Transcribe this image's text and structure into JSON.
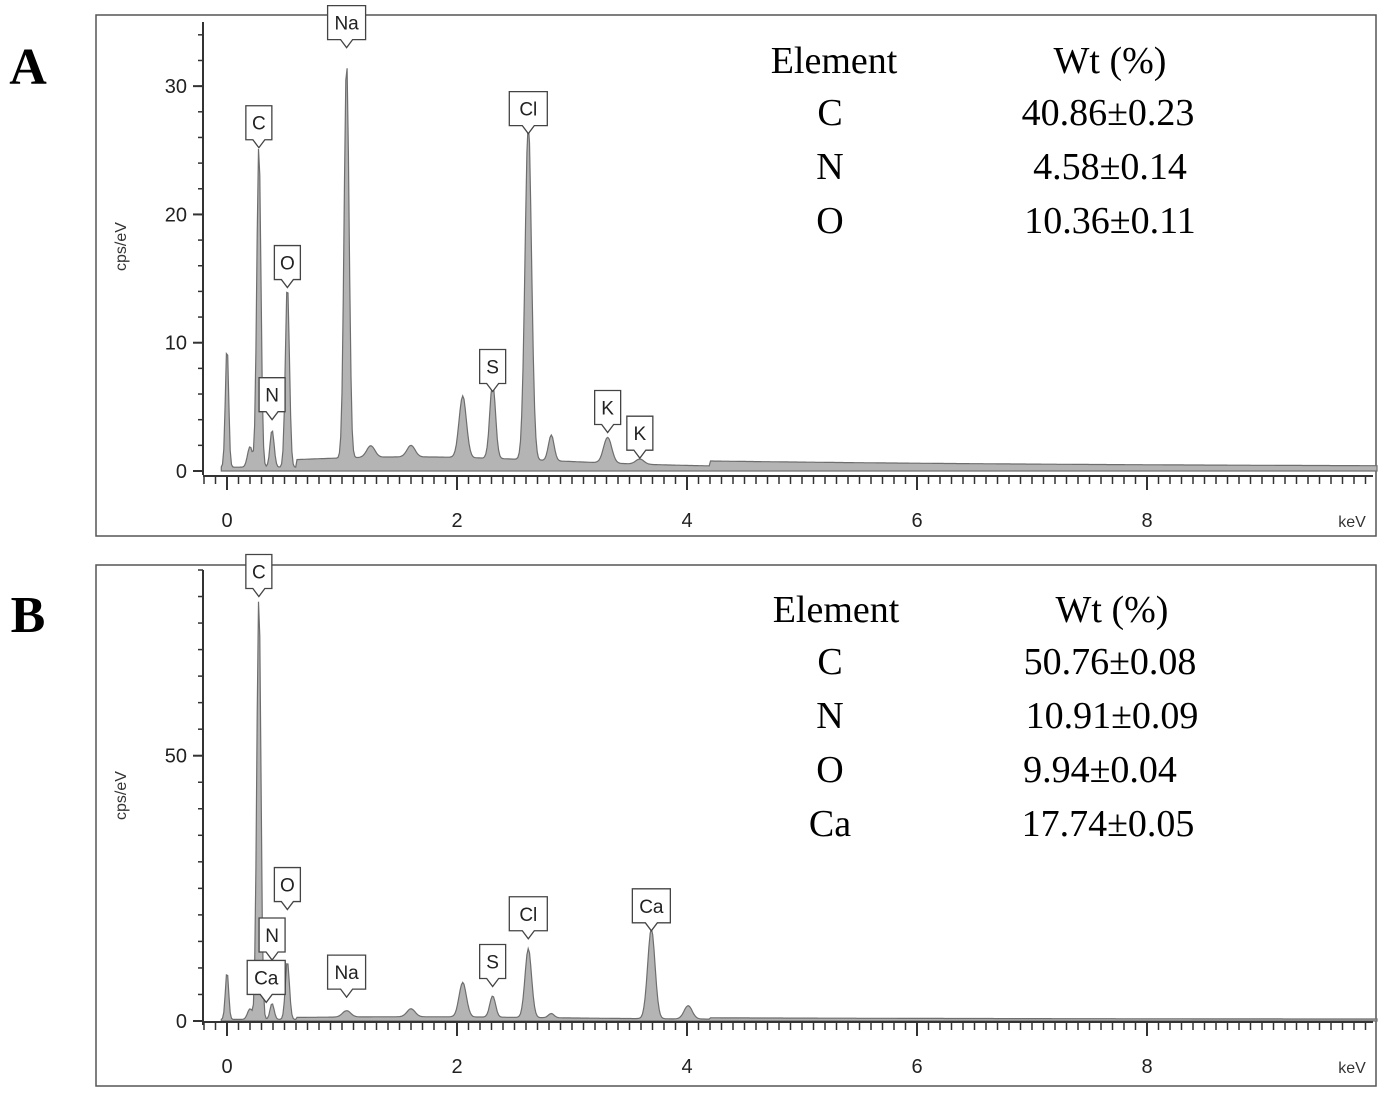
{
  "panels": [
    {
      "letter": "A",
      "table": {
        "header_element": "Element",
        "header_wt": "Wt (%)",
        "rows": [
          {
            "element": "C",
            "wt": "40.86±0.23"
          },
          {
            "element": "N",
            "wt": "4.58±0.14"
          },
          {
            "element": "O",
            "wt": "10.36±0.11"
          }
        ]
      }
    },
    {
      "letter": "B",
      "table": {
        "header_element": "Element",
        "header_wt": "Wt (%)",
        "rows": [
          {
            "element": "C",
            "wt": "50.76±0.08"
          },
          {
            "element": "N",
            "wt": "10.91±0.09"
          },
          {
            "element": "O",
            "wt": "9.94±0.04"
          },
          {
            "element": "Ca",
            "wt": "17.74±0.05"
          }
        ]
      }
    }
  ],
  "chart_data": [
    {
      "type": "area",
      "panel": "A",
      "xlabel": "keV",
      "ylabel": "cps/eV",
      "xlim": [
        -0.2,
        10.0
      ],
      "ylim": [
        0,
        35
      ],
      "xticks": [
        0,
        2,
        4,
        6,
        8
      ],
      "yticks": [
        0,
        10,
        20,
        30
      ],
      "baseline": 0.3,
      "tail_level": 0.8,
      "peaks": [
        {
          "x": 0.0,
          "y": 9.5,
          "w": 0.02
        },
        {
          "x": 0.2,
          "y": 1.6,
          "w": 0.03
        },
        {
          "x": 0.277,
          "y": 25.2,
          "w": 0.025
        },
        {
          "x": 0.392,
          "y": 2.9,
          "w": 0.025
        },
        {
          "x": 0.525,
          "y": 14.3,
          "w": 0.025
        },
        {
          "x": 1.04,
          "y": 31.0,
          "w": 0.03
        },
        {
          "x": 1.25,
          "y": 0.9,
          "w": 0.05
        },
        {
          "x": 1.6,
          "y": 0.9,
          "w": 0.05
        },
        {
          "x": 2.05,
          "y": 4.8,
          "w": 0.045
        },
        {
          "x": 2.31,
          "y": 5.9,
          "w": 0.035
        },
        {
          "x": 2.62,
          "y": 26.3,
          "w": 0.04
        },
        {
          "x": 2.82,
          "y": 2.0,
          "w": 0.035
        },
        {
          "x": 3.31,
          "y": 2.0,
          "w": 0.05
        },
        {
          "x": 3.59,
          "y": 0.4,
          "w": 0.05
        }
      ],
      "peak_labels": [
        {
          "label": "C",
          "x": 0.277,
          "y": 25.2
        },
        {
          "label": "N",
          "x": 0.392,
          "y": 4.0
        },
        {
          "label": "O",
          "x": 0.525,
          "y": 14.3
        },
        {
          "label": "Na",
          "x": 1.04,
          "y": 33.0
        },
        {
          "label": "Cl",
          "x": 2.62,
          "y": 26.3
        },
        {
          "label": "S",
          "x": 2.31,
          "y": 6.2
        },
        {
          "label": "K",
          "x": 3.31,
          "y": 3.0
        },
        {
          "label": "K",
          "x": 3.59,
          "y": 1.0
        }
      ]
    },
    {
      "type": "area",
      "panel": "B",
      "xlabel": "keV",
      "ylabel": "cps/eV",
      "xlim": [
        -0.2,
        10.0
      ],
      "ylim": [
        0,
        85
      ],
      "xticks": [
        0,
        2,
        4,
        6,
        8
      ],
      "yticks": [
        0,
        50
      ],
      "baseline": 0.3,
      "tail_level": 0.5,
      "peaks": [
        {
          "x": 0.0,
          "y": 9.0,
          "w": 0.02
        },
        {
          "x": 0.2,
          "y": 2.0,
          "w": 0.03
        },
        {
          "x": 0.277,
          "y": 80.0,
          "w": 0.025
        },
        {
          "x": 0.392,
          "y": 3.0,
          "w": 0.025
        },
        {
          "x": 0.525,
          "y": 11.0,
          "w": 0.025
        },
        {
          "x": 1.04,
          "y": 1.2,
          "w": 0.05
        },
        {
          "x": 1.6,
          "y": 1.5,
          "w": 0.05
        },
        {
          "x": 2.05,
          "y": 6.5,
          "w": 0.045
        },
        {
          "x": 2.31,
          "y": 4.0,
          "w": 0.035
        },
        {
          "x": 2.62,
          "y": 13.0,
          "w": 0.04
        },
        {
          "x": 2.82,
          "y": 0.8,
          "w": 0.035
        },
        {
          "x": 3.69,
          "y": 17.0,
          "w": 0.045
        },
        {
          "x": 4.01,
          "y": 2.5,
          "w": 0.05
        }
      ],
      "peak_labels": [
        {
          "label": "C",
          "x": 0.277,
          "y": 80.0
        },
        {
          "label": "N",
          "x": 0.392,
          "y": 11.5
        },
        {
          "label": "Ca",
          "x": 0.341,
          "y": 3.5
        },
        {
          "label": "O",
          "x": 0.525,
          "y": 21.0
        },
        {
          "label": "Na",
          "x": 1.04,
          "y": 4.5
        },
        {
          "label": "S",
          "x": 2.31,
          "y": 6.5
        },
        {
          "label": "Cl",
          "x": 2.62,
          "y": 15.5
        },
        {
          "label": "Ca",
          "x": 3.69,
          "y": 17.0
        }
      ]
    }
  ]
}
